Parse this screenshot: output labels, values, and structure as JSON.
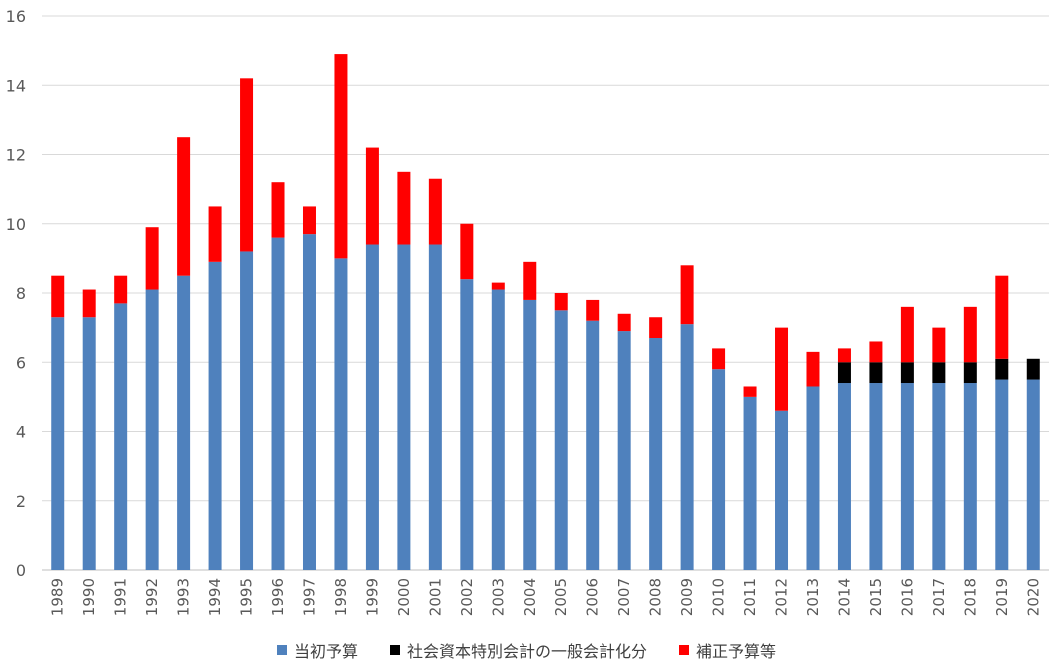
{
  "chart_data": {
    "type": "bar",
    "stacked": true,
    "title": "",
    "xlabel": "",
    "ylabel": "",
    "ylim": [
      0,
      16
    ],
    "yticks": [
      0,
      2,
      4,
      6,
      8,
      10,
      12,
      14,
      16
    ],
    "grid": true,
    "legend_position": "bottom",
    "categories": [
      "1989",
      "1990",
      "1991",
      "1992",
      "1993",
      "1994",
      "1995",
      "1996",
      "1997",
      "1998",
      "1999",
      "2000",
      "2001",
      "2002",
      "2003",
      "2004",
      "2005",
      "2006",
      "2007",
      "2008",
      "2009",
      "2010",
      "2011",
      "2012",
      "2013",
      "2014",
      "2015",
      "2016",
      "2017",
      "2018",
      "2019",
      "2020"
    ],
    "series": [
      {
        "name": "当初予算",
        "color": "#4f81bd",
        "values": [
          7.3,
          7.3,
          7.7,
          8.1,
          8.5,
          8.9,
          9.2,
          9.6,
          9.7,
          9.0,
          9.4,
          9.4,
          9.4,
          8.4,
          8.1,
          7.8,
          7.5,
          7.2,
          6.9,
          6.7,
          7.1,
          5.8,
          5.0,
          4.6,
          5.3,
          5.4,
          5.4,
          5.4,
          5.4,
          5.4,
          5.5,
          5.5
        ]
      },
      {
        "name": "社会資本特別会計の一般会計化分",
        "color": "#000000",
        "values": [
          0,
          0,
          0,
          0,
          0,
          0,
          0,
          0,
          0,
          0,
          0,
          0,
          0,
          0,
          0,
          0,
          0,
          0,
          0,
          0,
          0,
          0,
          0,
          0,
          0,
          0.6,
          0.6,
          0.6,
          0.6,
          0.6,
          0.6,
          0.6
        ]
      },
      {
        "name": "補正予算等",
        "color": "#ff0000",
        "values": [
          1.2,
          0.8,
          0.8,
          1.8,
          4.0,
          1.6,
          5.0,
          1.6,
          0.8,
          5.9,
          2.8,
          2.1,
          1.9,
          1.6,
          0.2,
          1.1,
          0.5,
          0.6,
          0.5,
          0.6,
          1.7,
          0.6,
          0.3,
          2.4,
          1.0,
          0.4,
          0.6,
          1.6,
          1.0,
          1.6,
          2.4,
          0
        ]
      }
    ]
  }
}
